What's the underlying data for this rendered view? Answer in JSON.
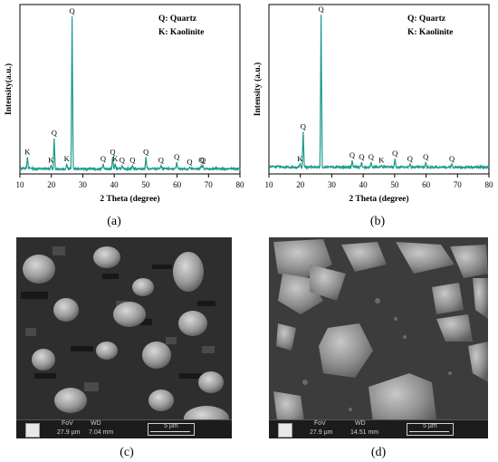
{
  "panels": {
    "a_caption": "(a)",
    "b_caption": "(b)",
    "c_caption": "(c)",
    "d_caption": "(d)"
  },
  "sem_c": {
    "fov_label": "FoV",
    "wd_label": "WD",
    "fov": "27.9 µm",
    "wd": "7.04 mm",
    "scale": "5 µm"
  },
  "sem_d": {
    "fov_label": "FoV",
    "wd_label": "WD",
    "fov": "27.9 µm",
    "wd": "14.51 mm",
    "scale": "5 µm"
  },
  "colors": {
    "trace": "#1a9a8a",
    "sem_bg": "#2a2a2a"
  },
  "chart_data": [
    {
      "type": "line",
      "title": "",
      "xlabel": "2 Theta (degree)",
      "ylabel": "Intensity(a.u.)",
      "xlim": [
        10,
        80
      ],
      "xticks": [
        10,
        20,
        30,
        40,
        50,
        60,
        70,
        80
      ],
      "legend": [
        "Q: Quartz",
        "K: Kaolinite"
      ],
      "legend_position": "top-right",
      "baseline": 0.03,
      "peaks": [
        {
          "x": 12.4,
          "y": 0.1,
          "label": "K"
        },
        {
          "x": 19.9,
          "y": 0.05,
          "label": "K"
        },
        {
          "x": 20.9,
          "y": 0.21,
          "label": "Q"
        },
        {
          "x": 24.9,
          "y": 0.06,
          "label": "K"
        },
        {
          "x": 26.6,
          "y": 0.93,
          "label": "Q"
        },
        {
          "x": 36.5,
          "y": 0.06,
          "label": "Q"
        },
        {
          "x": 39.5,
          "y": 0.1,
          "label": "Q"
        },
        {
          "x": 40.3,
          "y": 0.06,
          "label": "K"
        },
        {
          "x": 42.5,
          "y": 0.05,
          "label": "Q"
        },
        {
          "x": 45.8,
          "y": 0.05,
          "label": "Q"
        },
        {
          "x": 50.1,
          "y": 0.1,
          "label": "Q"
        },
        {
          "x": 54.9,
          "y": 0.05,
          "label": "Q"
        },
        {
          "x": 59.9,
          "y": 0.07,
          "label": "Q"
        },
        {
          "x": 64.0,
          "y": 0.04,
          "label": "Q"
        },
        {
          "x": 67.7,
          "y": 0.05,
          "label": "Q"
        },
        {
          "x": 68.2,
          "y": 0.05,
          "label": "Q"
        }
      ]
    },
    {
      "type": "line",
      "title": "",
      "xlabel": "2 Theta (degree)",
      "ylabel": "Intensity (a.u.)",
      "xlim": [
        10,
        80
      ],
      "xticks": [
        10,
        20,
        30,
        40,
        50,
        60,
        70,
        80
      ],
      "legend": [
        "Q: Quartz",
        "K: Kaolinite"
      ],
      "legend_position": "top-right",
      "baseline": 0.04,
      "peaks": [
        {
          "x": 19.9,
          "y": 0.06,
          "label": "K"
        },
        {
          "x": 20.9,
          "y": 0.25,
          "label": "Q"
        },
        {
          "x": 26.6,
          "y": 0.94,
          "label": "Q"
        },
        {
          "x": 36.5,
          "y": 0.08,
          "label": "Q"
        },
        {
          "x": 39.5,
          "y": 0.07,
          "label": "Q"
        },
        {
          "x": 42.5,
          "y": 0.07,
          "label": "Q"
        },
        {
          "x": 45.8,
          "y": 0.05,
          "label": "K"
        },
        {
          "x": 50.1,
          "y": 0.09,
          "label": "Q"
        },
        {
          "x": 54.9,
          "y": 0.06,
          "label": "Q"
        },
        {
          "x": 59.9,
          "y": 0.07,
          "label": "Q"
        },
        {
          "x": 68.2,
          "y": 0.06,
          "label": "Q"
        }
      ]
    }
  ]
}
